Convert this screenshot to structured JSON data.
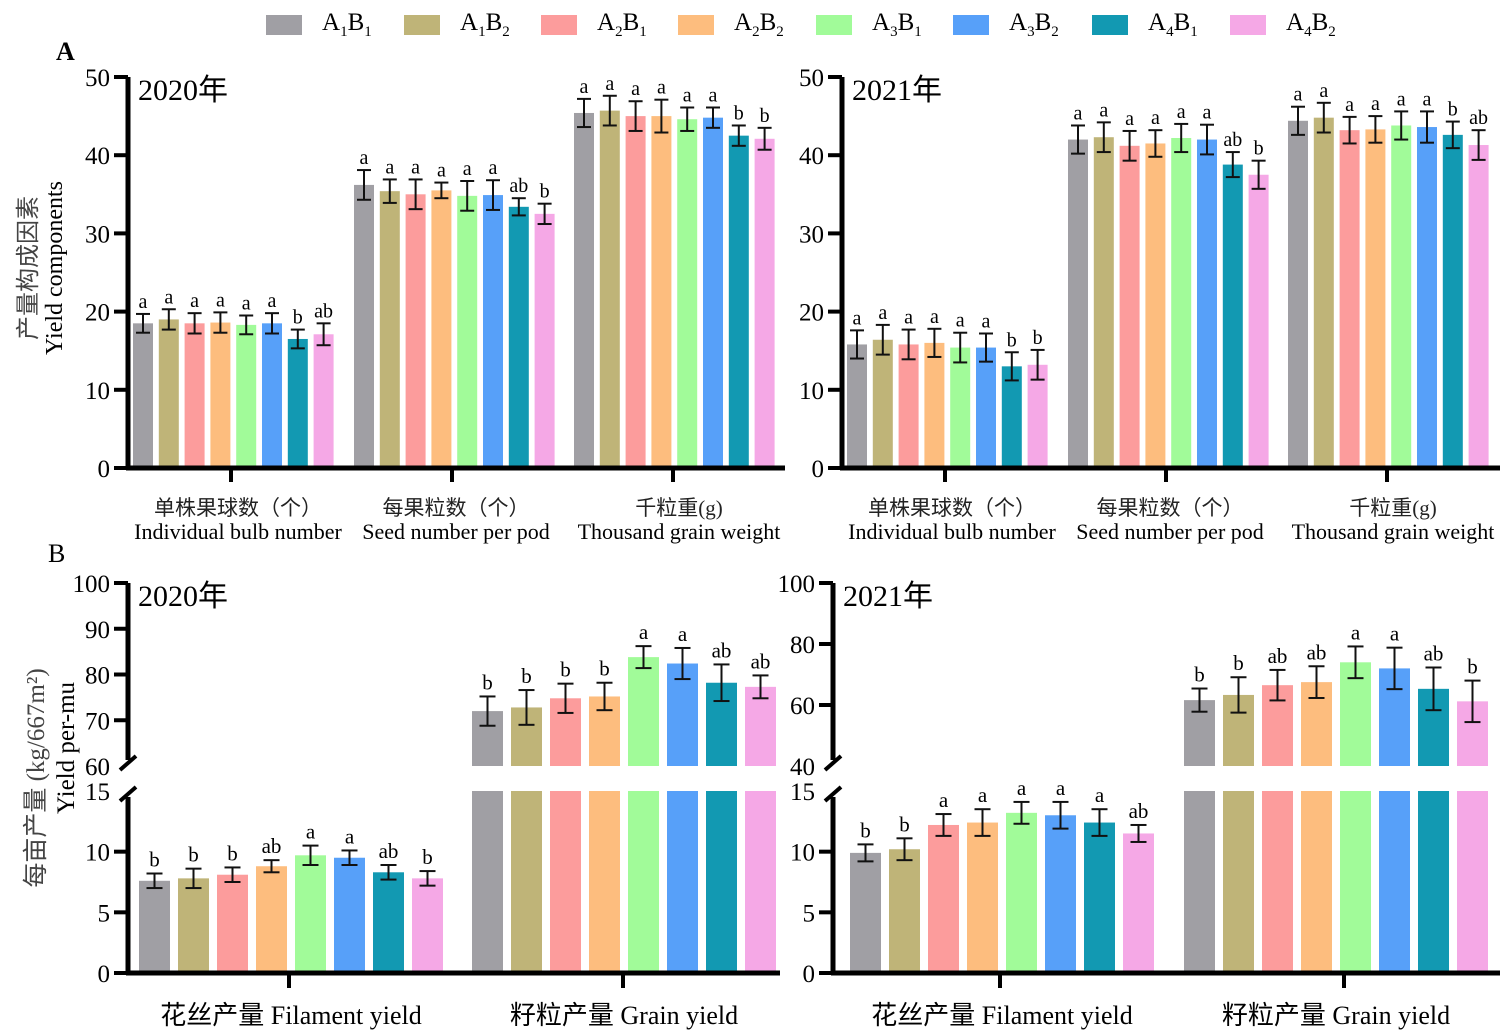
{
  "legend": [
    {
      "a": "1",
      "b": "1",
      "color": "#a09fa4"
    },
    {
      "a": "1",
      "b": "2",
      "color": "#bfb478"
    },
    {
      "a": "2",
      "b": "1",
      "color": "#fc9c9c"
    },
    {
      "a": "2",
      "b": "2",
      "color": "#fdbd7e"
    },
    {
      "a": "3",
      "b": "1",
      "color": "#a1fb99"
    },
    {
      "a": "3",
      "b": "2",
      "color": "#57a0f9"
    },
    {
      "a": "4",
      "b": "1",
      "color": "#1299b2"
    },
    {
      "a": "4",
      "b": "2",
      "color": "#f5a8e6"
    }
  ],
  "treatments": [
    "A1B1",
    "A1B2",
    "A2B1",
    "A2B2",
    "A3B1",
    "A3B2",
    "A4B1",
    "A4B2"
  ],
  "panel_labels": {
    "A": "A",
    "B": "B"
  },
  "chart_data": [
    {
      "type": "bar",
      "panel": "A",
      "title": "2020年",
      "ylabel_cn": "产量构成因素",
      "ylabel_en": "Yield components",
      "ylim": [
        0,
        50
      ],
      "yticks": [
        0,
        10,
        20,
        30,
        40,
        50
      ],
      "categories": [
        {
          "cn": "单株果球数（个）",
          "en": "Individual bulb number"
        },
        {
          "cn": "每果粒数（个）",
          "en": "Seed number per pod"
        },
        {
          "cn": "千粒重(g)",
          "en": "Thousand grain weight"
        }
      ],
      "values": [
        [
          18.5,
          19.0,
          18.5,
          18.6,
          18.3,
          18.5,
          16.5,
          17.1
        ],
        [
          36.2,
          35.4,
          35.0,
          35.5,
          34.8,
          34.9,
          33.4,
          32.5
        ],
        [
          45.4,
          45.7,
          45.0,
          45.0,
          44.6,
          44.8,
          42.5,
          42.1
        ]
      ],
      "errors": [
        [
          1.2,
          1.3,
          1.3,
          1.3,
          1.2,
          1.3,
          1.2,
          1.4
        ],
        [
          1.9,
          1.5,
          1.9,
          1.0,
          1.9,
          1.9,
          1.1,
          1.3
        ],
        [
          1.8,
          1.9,
          1.9,
          2.1,
          1.5,
          1.3,
          1.3,
          1.4
        ]
      ],
      "letters": [
        [
          "a",
          "a",
          "a",
          "a",
          "a",
          "a",
          "b",
          "ab"
        ],
        [
          "a",
          "a",
          "a",
          "a",
          "a",
          "a",
          "ab",
          "b"
        ],
        [
          "a",
          "a",
          "a",
          "a",
          "a",
          "a",
          "b",
          "b"
        ]
      ]
    },
    {
      "type": "bar",
      "panel": "A",
      "title": "2021年",
      "ylim": [
        0,
        50
      ],
      "yticks": [
        0,
        10,
        20,
        30,
        40,
        50
      ],
      "categories": [
        {
          "cn": "单株果球数（个）",
          "en": "Individual bulb number"
        },
        {
          "cn": "每果粒数（个）",
          "en": "Seed number per pod"
        },
        {
          "cn": "千粒重(g)",
          "en": "Thousand grain weight"
        }
      ],
      "values": [
        [
          15.8,
          16.4,
          15.8,
          16.0,
          15.4,
          15.4,
          13.0,
          13.2
        ],
        [
          42.0,
          42.3,
          41.2,
          41.5,
          42.2,
          42.0,
          38.8,
          37.5
        ],
        [
          44.4,
          44.8,
          43.2,
          43.3,
          43.8,
          43.6,
          42.6,
          41.3
        ]
      ],
      "errors": [
        [
          1.8,
          1.9,
          1.9,
          1.8,
          1.9,
          1.8,
          1.8,
          1.9
        ],
        [
          1.8,
          1.9,
          1.9,
          1.7,
          1.8,
          1.9,
          1.6,
          1.8
        ],
        [
          1.8,
          1.9,
          1.7,
          1.7,
          1.8,
          2.0,
          1.7,
          1.9
        ]
      ],
      "letters": [
        [
          "a",
          "a",
          "a",
          "a",
          "a",
          "a",
          "b",
          "b"
        ],
        [
          "a",
          "a",
          "a",
          "a",
          "a",
          "a",
          "ab",
          "b"
        ],
        [
          "a",
          "a",
          "a",
          "a",
          "a",
          "a",
          "b",
          "ab"
        ]
      ]
    },
    {
      "type": "bar",
      "panel": "B",
      "title": "2020年",
      "ylabel_cn": "每亩产量 (kg/667m²)",
      "ylabel_en": "Yield per-mu",
      "broken_axis": true,
      "lower_ylim": [
        0,
        15
      ],
      "upper_ylim": [
        60,
        100
      ],
      "lower_yticks": [
        0,
        5,
        10,
        15
      ],
      "upper_yticks": [
        60,
        70,
        80,
        90,
        100
      ],
      "categories": [
        {
          "label": "花丝产量 Filament yield"
        },
        {
          "label": "籽粒产量 Grain yield"
        }
      ],
      "values": [
        [
          7.6,
          7.8,
          8.1,
          8.8,
          9.7,
          9.5,
          8.3,
          7.8
        ],
        [
          72.0,
          72.8,
          74.8,
          75.2,
          83.8,
          82.4,
          78.2,
          77.3
        ]
      ],
      "errors": [
        [
          0.6,
          0.8,
          0.6,
          0.5,
          0.8,
          0.6,
          0.6,
          0.6
        ],
        [
          3.2,
          3.8,
          3.2,
          3.0,
          2.4,
          3.4,
          4.0,
          2.5
        ]
      ],
      "letters": [
        [
          "b",
          "b",
          "b",
          "ab",
          "a",
          "a",
          "ab",
          "b"
        ],
        [
          "b",
          "b",
          "b",
          "b",
          "a",
          "a",
          "ab",
          "ab"
        ]
      ]
    },
    {
      "type": "bar",
      "panel": "B",
      "title": "2021年",
      "broken_axis": true,
      "lower_ylim": [
        0,
        15
      ],
      "upper_ylim": [
        40,
        100
      ],
      "lower_yticks": [
        0,
        5,
        10,
        15
      ],
      "upper_yticks": [
        40,
        60,
        80,
        100
      ],
      "categories": [
        {
          "label": "花丝产量 Filament yield"
        },
        {
          "label": "籽粒产量 Grain yield"
        }
      ],
      "values": [
        [
          9.9,
          10.2,
          12.2,
          12.4,
          13.2,
          13.0,
          12.4,
          11.5
        ],
        [
          61.6,
          63.3,
          66.5,
          67.5,
          74.0,
          72.0,
          65.3,
          61.2
        ]
      ],
      "errors": [
        [
          0.7,
          0.9,
          0.9,
          1.1,
          0.9,
          1.1,
          1.1,
          0.7
        ],
        [
          3.8,
          5.8,
          5.0,
          5.2,
          5.2,
          6.8,
          7.0,
          6.8
        ]
      ],
      "letters": [
        [
          "b",
          "b",
          "a",
          "a",
          "a",
          "a",
          "a",
          "ab"
        ],
        [
          "b",
          "b",
          "ab",
          "ab",
          "a",
          "a",
          "ab",
          "b"
        ]
      ]
    }
  ]
}
